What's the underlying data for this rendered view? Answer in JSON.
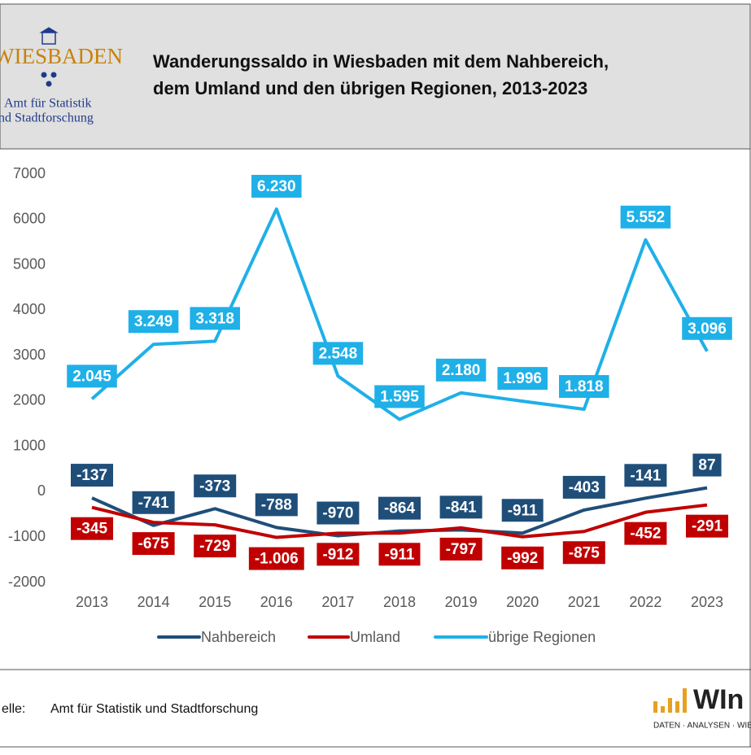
{
  "logo": {
    "name": "WIESBADEN",
    "line1": "Amt für Statistik",
    "line2": "und Stadtforschung"
  },
  "logo_right": {
    "name": "WIn",
    "tagline": "DATEN · ANALYSEN · WIESB"
  },
  "source": {
    "label": "elle:",
    "text": "Amt für Statistik und Stadtforschung"
  },
  "chart_data": {
    "type": "line",
    "title": "Wanderungssaldo in Wiesbaden mit dem Nahbereich,",
    "subtitle": "dem Umland und den übrigen Regionen, 2013-2023",
    "categories": [
      "2013",
      "2014",
      "2015",
      "2016",
      "2017",
      "2018",
      "2019",
      "2020",
      "2021",
      "2022",
      "2023"
    ],
    "ylim": [
      -2000,
      7000
    ],
    "yticks": [
      -2000,
      -1000,
      0,
      1000,
      2000,
      3000,
      4000,
      5000,
      6000,
      7000
    ],
    "grid": false,
    "legend": "bottom",
    "series": [
      {
        "name": "Nahbereich",
        "color": "#1f4e79",
        "label_side": "above",
        "values": [
          -137,
          -741,
          -373,
          -788,
          -970,
          -864,
          -841,
          -911,
          -403,
          -141,
          87
        ],
        "value_labels": [
          "-137",
          "-741",
          "-373",
          "-788",
          "-970",
          "-864",
          "-841",
          "-911",
          "-403",
          "-141",
          "87"
        ]
      },
      {
        "name": "Umland",
        "color": "#c00000",
        "label_side": "below",
        "values": [
          -345,
          -675,
          -729,
          -1006,
          -912,
          -911,
          -797,
          -992,
          -875,
          -452,
          -291
        ],
        "value_labels": [
          "-345",
          "-675",
          "-729",
          "-1.006",
          "-912",
          "-911",
          "-797",
          "-992",
          "-875",
          "-452",
          "-291"
        ]
      },
      {
        "name": "übrige Regionen",
        "color": "#1fb0e8",
        "label_side": "above",
        "values": [
          2045,
          3249,
          3318,
          6230,
          2548,
          1595,
          2180,
          1996,
          1818,
          5552,
          3096
        ],
        "value_labels": [
          "2.045",
          "3.249",
          "3.318",
          "6.230",
          "2.548",
          "1.595",
          "2.180",
          "1.996",
          "1.818",
          "5.552",
          "3.096"
        ]
      }
    ]
  }
}
